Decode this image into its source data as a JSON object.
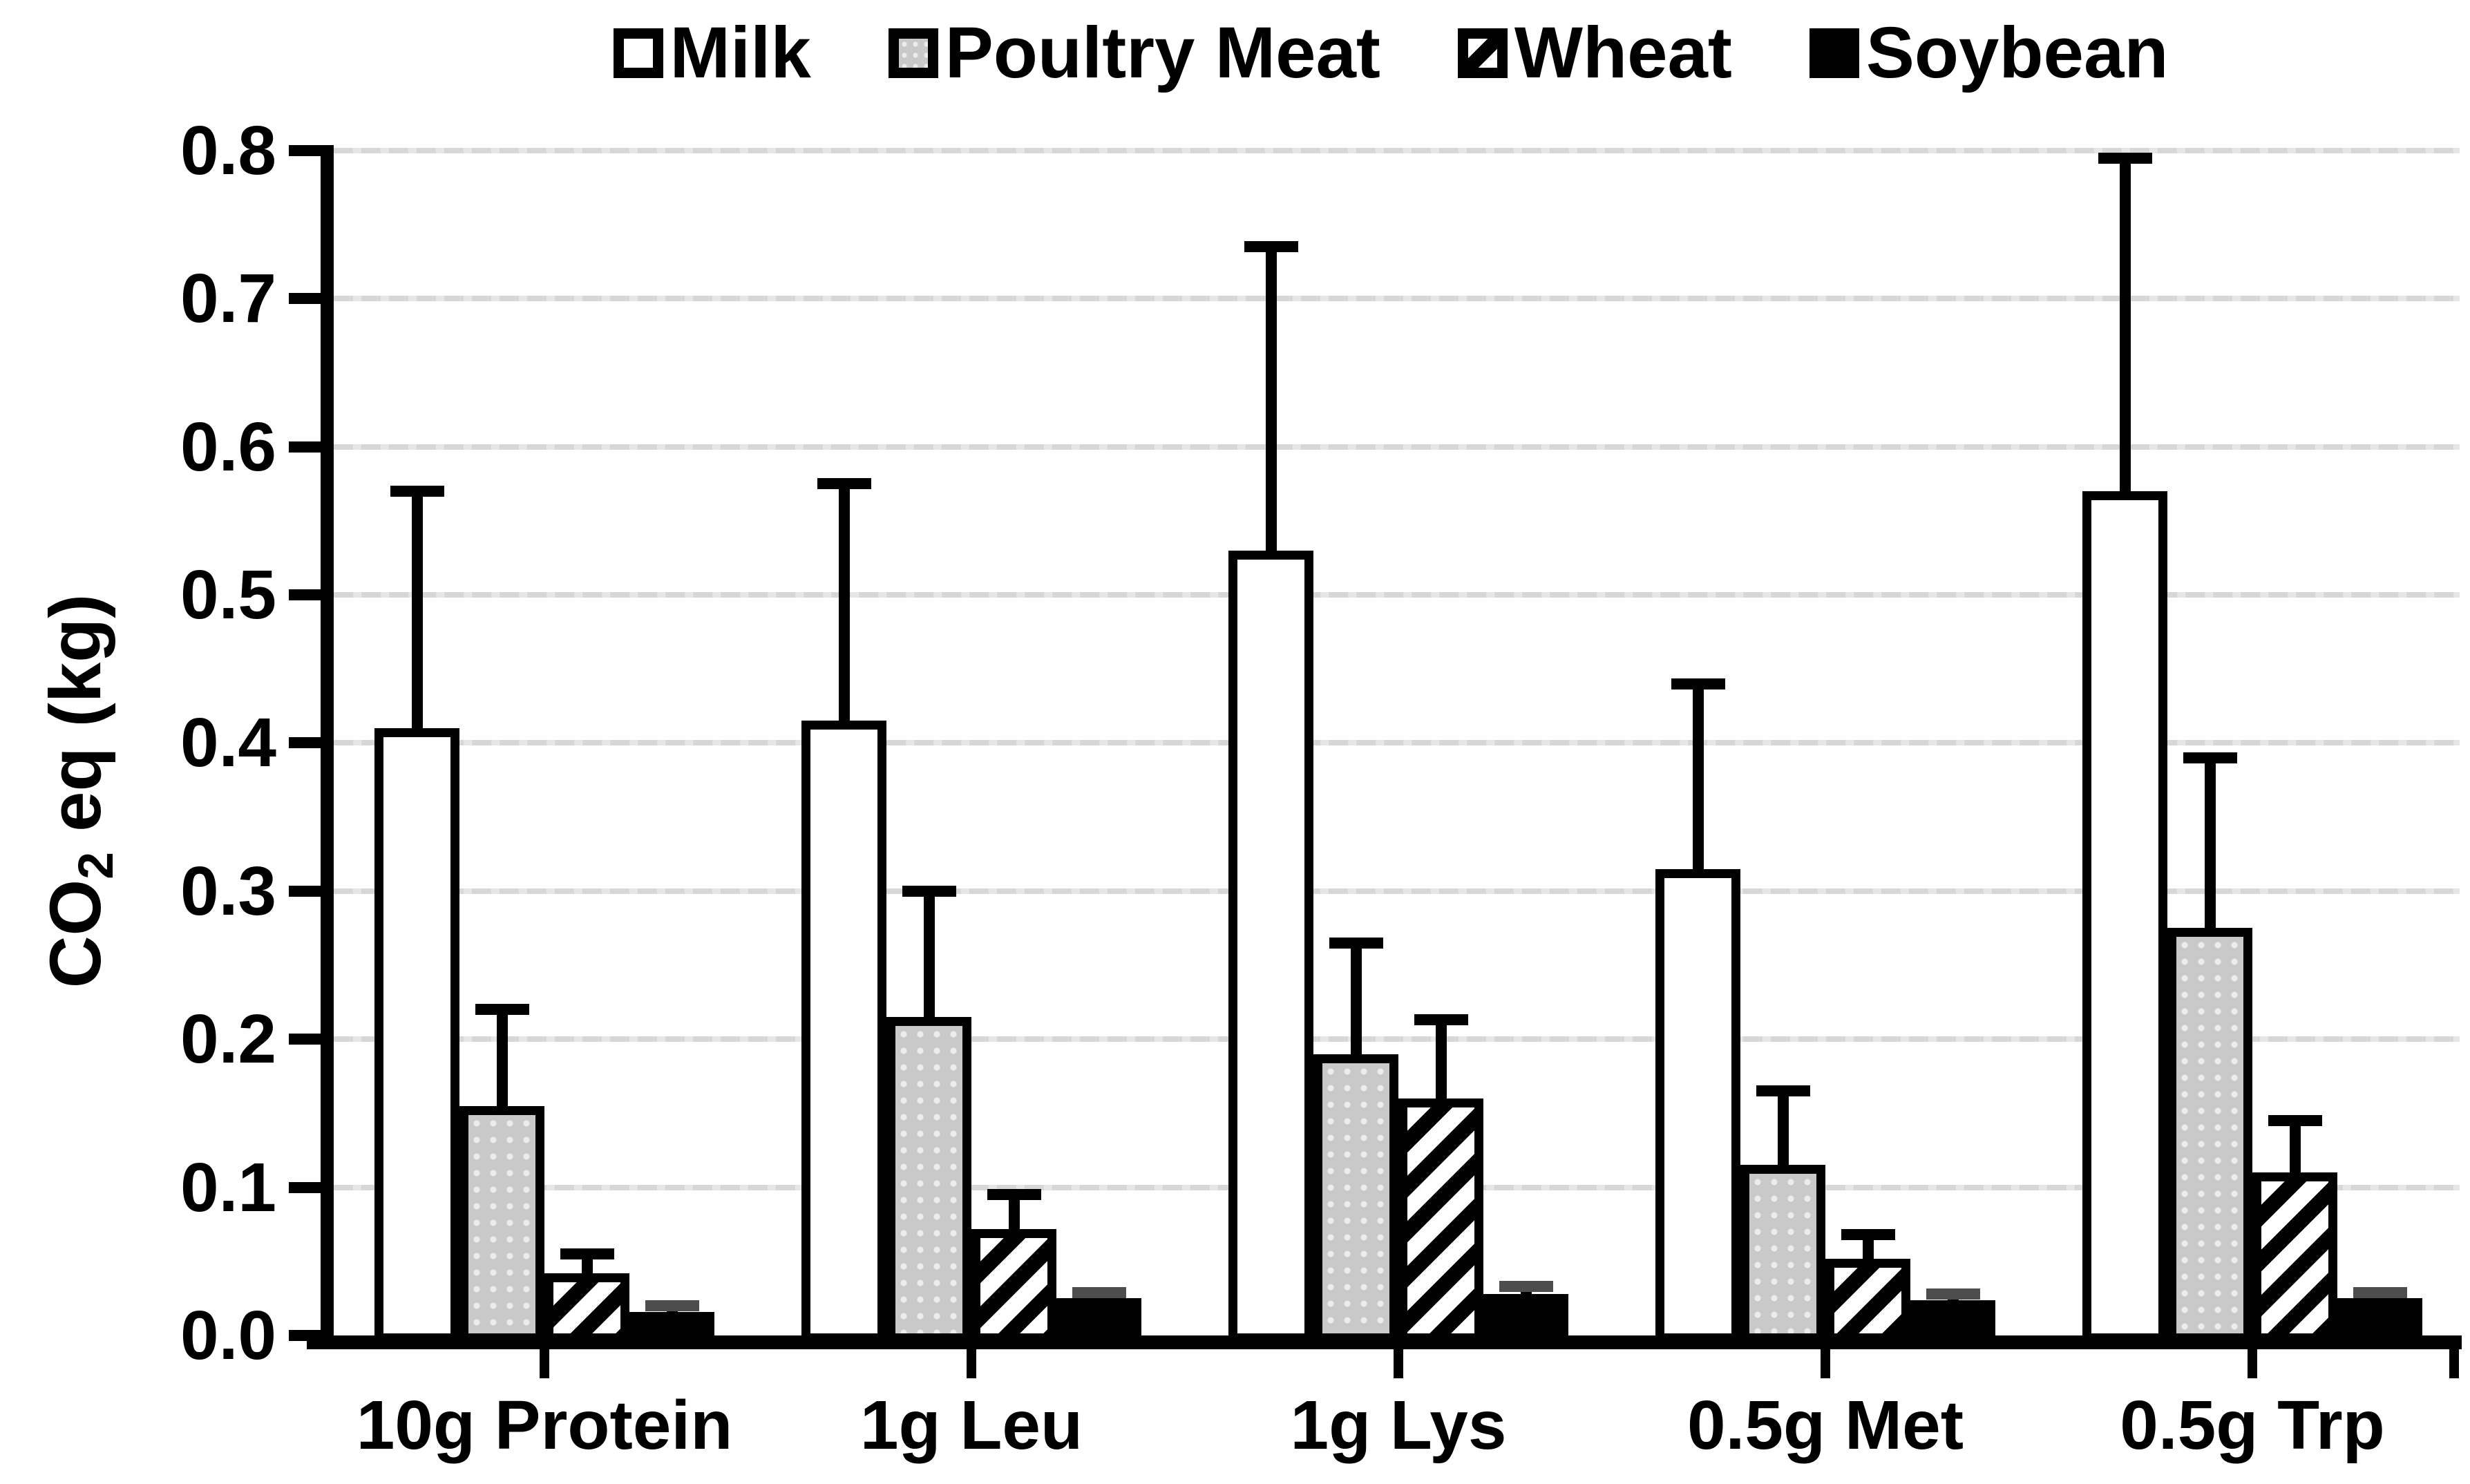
{
  "figure": {
    "background": "#ffffff",
    "ylabel_parts": {
      "prefix": "CO",
      "sub": "2",
      "suffix": " eq (kg)"
    }
  },
  "chart_data": {
    "type": "bar",
    "title": "",
    "xlabel": "",
    "ylabel": "CO2 eq (kg)",
    "ylim": [
      0,
      0.8
    ],
    "yticks": [
      "0.0",
      "0.1",
      "0.2",
      "0.3",
      "0.4",
      "0.5",
      "0.6",
      "0.7",
      "0.8"
    ],
    "grid": "horizontal-dashed-light-gray",
    "legend_position": "top-center",
    "error_bars": "upper-only-with-caps",
    "categories": [
      "10g Protein",
      "1g Leu",
      "1g Lys",
      "0.5g Met",
      "0.5g Trp"
    ],
    "series": [
      {
        "name": "Milk",
        "pattern": "plain-white",
        "css_class": "milk",
        "values": [
          0.41,
          0.415,
          0.53,
          0.315,
          0.57
        ],
        "errors": [
          0.16,
          0.16,
          0.205,
          0.125,
          0.225
        ],
        "cap_color": "#000000"
      },
      {
        "name": "Poultry Meat",
        "pattern": "gray-dotted",
        "css_class": "poultry",
        "values": [
          0.155,
          0.215,
          0.19,
          0.115,
          0.275
        ],
        "errors": [
          0.065,
          0.085,
          0.075,
          0.05,
          0.115
        ],
        "cap_color": "#000000"
      },
      {
        "name": "Wheat",
        "pattern": "diagonal-hatch",
        "css_class": "wheat",
        "values": [
          0.042,
          0.072,
          0.16,
          0.052,
          0.11
        ],
        "errors": [
          0.013,
          0.023,
          0.053,
          0.016,
          0.035
        ],
        "cap_color": "#000000"
      },
      {
        "name": "Soybean",
        "pattern": "solid-black",
        "css_class": "soybean",
        "values": [
          0.016,
          0.025,
          0.028,
          0.024,
          0.025
        ],
        "errors": [
          0.004,
          0.004,
          0.005,
          0.004,
          0.004
        ],
        "cap_color": "#4d4d4d"
      }
    ],
    "colors": {
      "axis": "#000000",
      "gridline": "#d9d9d9",
      "milk_fill": "#ffffff",
      "poultry_fill": "#c9c9c9",
      "soybean_fill": "#000000",
      "soybean_error_cap": "#4d4d4d"
    }
  }
}
